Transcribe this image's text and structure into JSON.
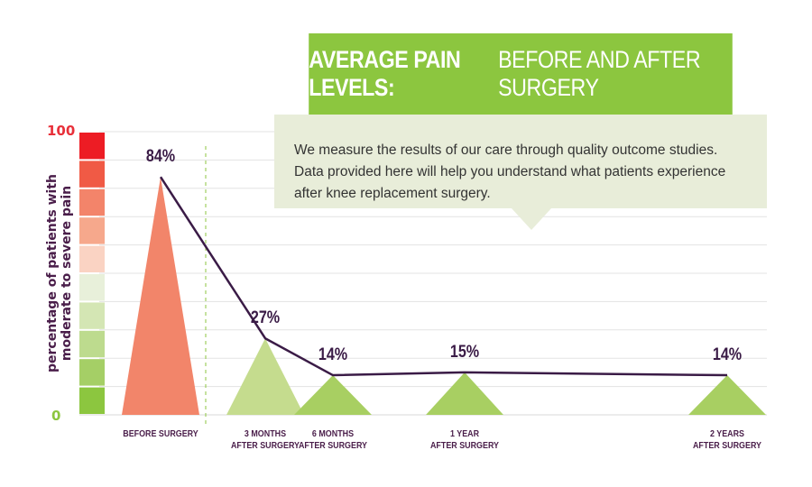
{
  "title": {
    "bold": "AVERAGE PAIN LEVELS:",
    "light": "BEFORE AND AFTER SURGERY"
  },
  "description": "We measure the results of our care through quality outcome studies. Data provided here will help you understand what patients experience after knee replacement surgery.",
  "chart_data": {
    "type": "line",
    "ylabel": "percentage of patients with moderate to severe pain",
    "ylim": [
      0,
      100
    ],
    "yticks": [
      "100",
      "0"
    ],
    "categories": [
      "BEFORE SURGERY",
      "3 MONTHS AFTER SURGERY",
      "6 MONTHS AFTER SURGERY",
      "1 YEAR AFTER SURGERY",
      "2 YEARS AFTER SURGERY"
    ],
    "category_lines": [
      [
        "BEFORE SURGERY"
      ],
      [
        "3 MONTHS",
        "AFTER SURGERY"
      ],
      [
        "6 MONTHS",
        "AFTER SURGERY"
      ],
      [
        "1 YEAR",
        "AFTER SURGERY"
      ],
      [
        "2 YEARS",
        "AFTER SURGERY"
      ]
    ],
    "values": [
      84,
      27,
      14,
      15,
      14
    ],
    "value_labels": [
      "84%",
      "27%",
      "14%",
      "15%",
      "14%"
    ],
    "x_months": [
      0,
      3,
      6,
      12,
      24
    ],
    "grid": true,
    "colors": {
      "line": "#3a1b46",
      "before_triangle": "#f2856a",
      "three_month_triangle": "#c5dc8e",
      "after_triangles": "#a8cf62",
      "divider": "#8cc63f",
      "grid": "#e3e3e3"
    },
    "scale_colors": [
      "#ed1c24",
      "#f05a45",
      "#f3846a",
      "#f6a88c",
      "#fad3c3",
      "#e8f0da",
      "#d4e6b4",
      "#bddb8e",
      "#a5cf66",
      "#8cc63f"
    ]
  }
}
